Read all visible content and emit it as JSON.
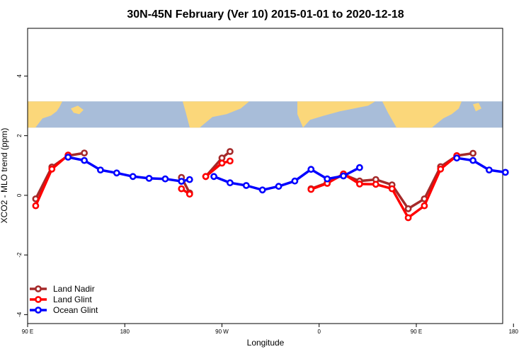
{
  "chart_data": {
    "type": "line",
    "title": "30N-45N February (Ver 10)   2015-01-01 to 2020-12-18",
    "xlabel": "Longitude",
    "ylabel": "XCO2 - MLO trend (ppm)",
    "xlim": [
      0,
      440
    ],
    "ylim": [
      -4.3,
      5.6
    ],
    "x_ticks": [
      {
        "value": 0,
        "label": "90 E"
      },
      {
        "value": 90,
        "label": "180"
      },
      {
        "value": 180,
        "label": "90 W"
      },
      {
        "value": 270,
        "label": "0"
      },
      {
        "value": 360,
        "label": "90 E"
      },
      {
        "value": 450,
        "label": "180"
      }
    ],
    "y_ticks": [
      {
        "value": -4,
        "label": "-4"
      },
      {
        "value": -2,
        "label": "-2"
      },
      {
        "value": 0,
        "label": "0"
      },
      {
        "value": 2,
        "label": "2"
      },
      {
        "value": 4,
        "label": "4"
      }
    ],
    "map_strip": {
      "y_top": 3.15,
      "y_bottom": 2.27,
      "ocean_color": "#A8BDD9",
      "land_color": "#FBD77A"
    },
    "legend_position": "bottom-left",
    "series": [
      {
        "name": "Land Nadir",
        "color": "#A52A2A",
        "segments": [
          [
            [
              7.5,
              -0.12
            ],
            [
              22.5,
              0.95
            ],
            [
              37.5,
              1.33
            ],
            [
              52.5,
              1.42
            ]
          ],
          [
            [
              142.5,
              0.6
            ],
            [
              150,
              0.08
            ]
          ],
          [
            [
              165,
              0.63
            ],
            [
              180,
              1.25
            ],
            [
              187.5,
              1.47
            ]
          ],
          [
            [
              262.5,
              0.22
            ],
            [
              277.5,
              0.42
            ],
            [
              292.5,
              0.7
            ],
            [
              307.5,
              0.48
            ],
            [
              322.5,
              0.53
            ],
            [
              337.5,
              0.35
            ],
            [
              352.5,
              -0.45
            ],
            [
              367.5,
              -0.12
            ],
            [
              382.5,
              0.96
            ],
            [
              397.5,
              1.33
            ],
            [
              412.5,
              1.41
            ]
          ]
        ]
      },
      {
        "name": "Land Glint",
        "color": "#FF0000",
        "segments": [
          [
            [
              7.5,
              -0.35
            ],
            [
              22.5,
              0.88
            ],
            [
              37.5,
              1.35
            ]
          ],
          [
            [
              142.5,
              0.22
            ],
            [
              150,
              0.04
            ]
          ],
          [
            [
              165,
              0.63
            ],
            [
              180,
              1.08
            ],
            [
              187.5,
              1.15
            ]
          ],
          [
            [
              262.5,
              0.2
            ],
            [
              277.5,
              0.4
            ],
            [
              292.5,
              0.72
            ],
            [
              307.5,
              0.38
            ],
            [
              322.5,
              0.37
            ],
            [
              337.5,
              0.22
            ],
            [
              352.5,
              -0.75
            ],
            [
              367.5,
              -0.35
            ],
            [
              382.5,
              0.88
            ],
            [
              397.5,
              1.33
            ]
          ]
        ]
      },
      {
        "name": "Ocean Glint",
        "color": "#0000FF",
        "segments": [
          [
            [
              37.5,
              1.28
            ],
            [
              52.5,
              1.17
            ],
            [
              67.5,
              0.85
            ],
            [
              82.5,
              0.75
            ],
            [
              97.5,
              0.63
            ],
            [
              112.5,
              0.57
            ],
            [
              127.5,
              0.55
            ],
            [
              142.5,
              0.47
            ],
            [
              150,
              0.53
            ]
          ],
          [
            [
              172.5,
              0.63
            ],
            [
              187.5,
              0.42
            ],
            [
              202.5,
              0.33
            ],
            [
              217.5,
              0.18
            ],
            [
              232.5,
              0.3
            ],
            [
              247.5,
              0.48
            ],
            [
              262.5,
              0.87
            ],
            [
              277.5,
              0.55
            ],
            [
              292.5,
              0.65
            ],
            [
              307.5,
              0.93
            ]
          ],
          [
            [
              397.5,
              1.25
            ],
            [
              412.5,
              1.17
            ],
            [
              427.5,
              0.85
            ],
            [
              442.5,
              0.77
            ]
          ]
        ]
      }
    ]
  }
}
